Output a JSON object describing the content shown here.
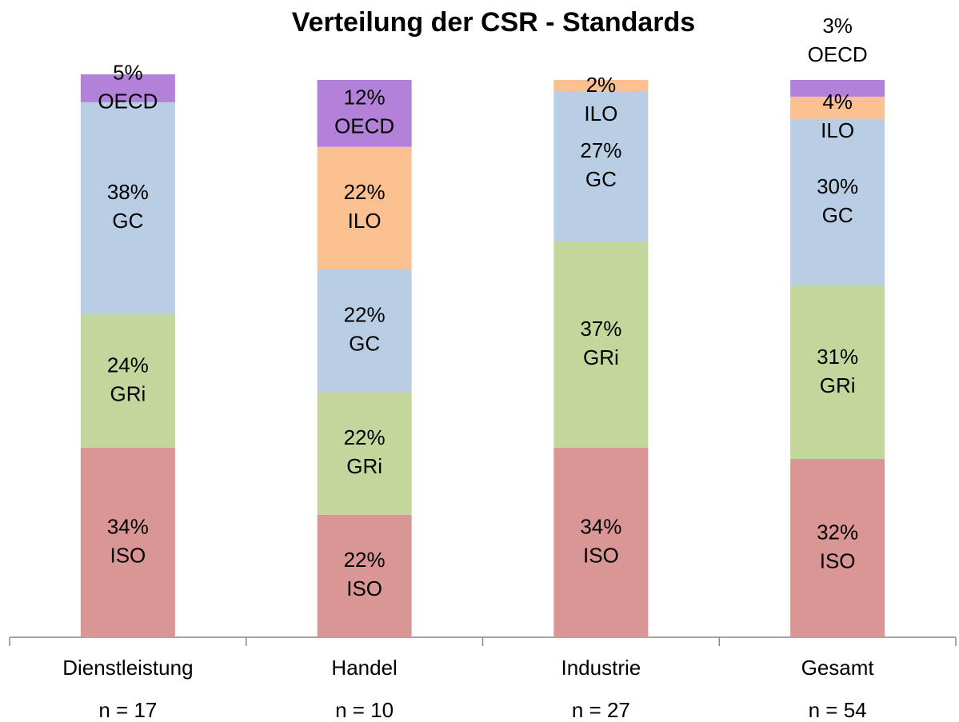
{
  "chart_data": {
    "type": "stacked_bar",
    "title": "Verteilung der CSR - Standards",
    "categories": [
      "Dienstleistung",
      "Handel",
      "Industrie",
      "Gesamt"
    ],
    "sample_sizes": [
      "n = 17",
      "n = 10",
      "n = 27",
      "n = 54"
    ],
    "ylim": [
      0,
      100
    ],
    "series": [
      {
        "name": "ISO",
        "color": "#d99694",
        "values": [
          34,
          22,
          34,
          32
        ],
        "value_labels": [
          "34%",
          "22%",
          "34%",
          "32%"
        ]
      },
      {
        "name": "GRi",
        "color": "#c3d69b",
        "values": [
          24,
          22,
          37,
          31
        ],
        "value_labels": [
          "24%",
          "22%",
          "37%",
          "31%"
        ]
      },
      {
        "name": "GC",
        "color": "#b9cde5",
        "values": [
          38,
          22,
          27,
          30
        ],
        "value_labels": [
          "38%",
          "22%",
          "27%",
          "30%"
        ]
      },
      {
        "name": "ILO",
        "color": "#fac090",
        "values": [
          null,
          22,
          2,
          4
        ],
        "value_labels": [
          null,
          "22%",
          "2%",
          "4%"
        ]
      },
      {
        "name": "OECD",
        "color": "#b381d9",
        "values": [
          5,
          12,
          null,
          3
        ],
        "value_labels": [
          "5%",
          "12%",
          null,
          "3%"
        ]
      }
    ]
  }
}
